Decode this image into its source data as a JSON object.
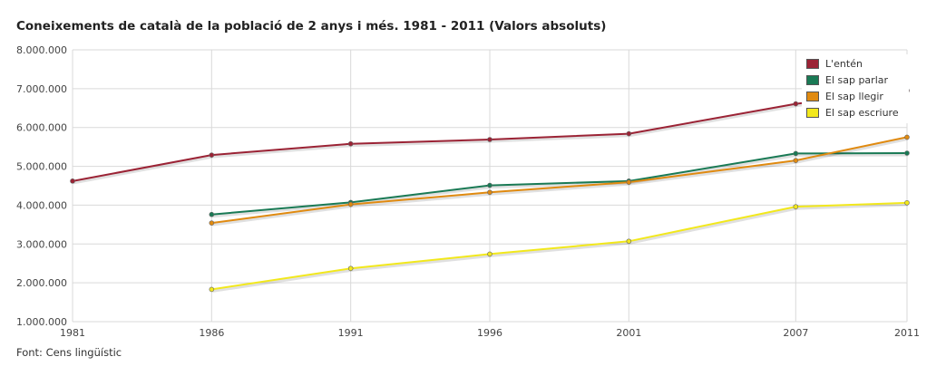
{
  "title": "Coneixements de català de la població de 2 anys i més. 1981 - 2011 (Valors absoluts)",
  "source": "Font: Cens lingüístic",
  "chart_data": {
    "type": "line",
    "x": [
      1981,
      1986,
      1991,
      1996,
      2001,
      2007,
      2011
    ],
    "x_tick_labels": [
      "1981",
      "1986",
      "1991",
      "1996",
      "2001",
      "2007",
      "2011"
    ],
    "y_tick_labels": [
      "1.000.000",
      "2.000.000",
      "3.000.000",
      "4.000.000",
      "5.000.000",
      "6.000.000",
      "7.000.000",
      "8.000.000"
    ],
    "y_ticks": [
      1000000,
      2000000,
      3000000,
      4000000,
      5000000,
      6000000,
      7000000,
      8000000
    ],
    "ylim": [
      1000000,
      8000000
    ],
    "grid": true,
    "legend_position": "top-right",
    "series": [
      {
        "name": "L'entén",
        "color": "#9b2335",
        "values": [
          4620000,
          5290000,
          5580000,
          5690000,
          5840000,
          6610000,
          6950000
        ]
      },
      {
        "name": "El sap parlar",
        "color": "#1a7a55",
        "values": [
          null,
          3760000,
          4070000,
          4510000,
          4620000,
          5330000,
          5340000
        ]
      },
      {
        "name": "El sap llegir",
        "color": "#e08a10",
        "values": [
          null,
          3540000,
          4020000,
          4330000,
          4590000,
          5150000,
          5750000
        ]
      },
      {
        "name": "El sap escriure",
        "color": "#f2e81c",
        "values": [
          null,
          1830000,
          2370000,
          2740000,
          3070000,
          3960000,
          4060000
        ]
      }
    ]
  }
}
